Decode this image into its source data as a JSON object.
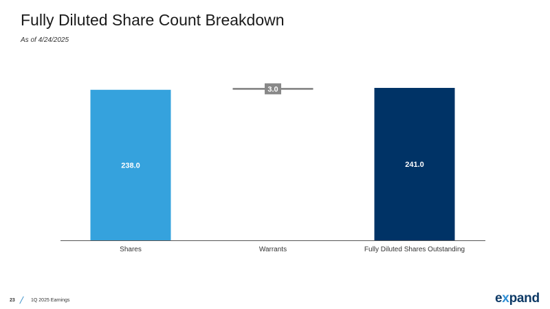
{
  "slide": {
    "title": "Fully Diluted Share Count Breakdown",
    "subtitle": "As of 4/24/2025",
    "page_number": "23",
    "footer_text": "1Q 2025 Earnings",
    "logo_text_1": "e",
    "logo_text_2": "x",
    "logo_text_3": "pand"
  },
  "colors": {
    "shares": "#35a2dd",
    "warrants": "#888888",
    "total": "#003366",
    "axis": "#555555"
  },
  "chart_data": {
    "type": "bar",
    "subtype": "waterfall",
    "categories": [
      "Shares",
      "Warrants",
      "Fully Diluted Shares Outstanding"
    ],
    "values": [
      238.0,
      3.0,
      241.0
    ],
    "labels": [
      "238.0",
      "3.0",
      "241.0"
    ],
    "series": [
      {
        "name": "",
        "values": [
          238.0,
          3.0,
          241.0
        ]
      }
    ],
    "ylim": [
      0,
      241.0
    ],
    "grid": false,
    "legend": "none"
  }
}
